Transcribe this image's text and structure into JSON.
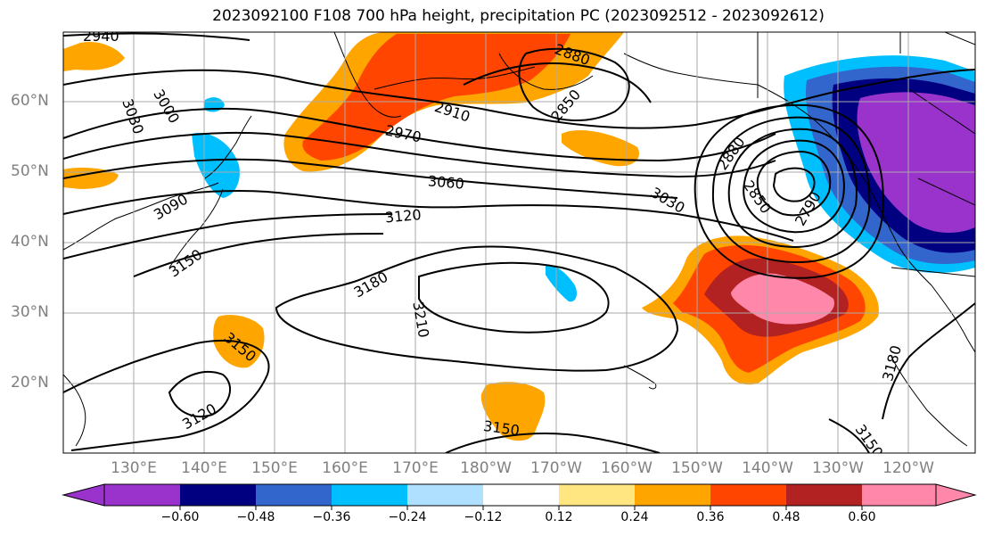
{
  "title": "2023092100 F108 700 hPa height, precipitation PC (2023092512 - 2023092612)",
  "lat_labels": [
    "60°N",
    "50°N",
    "40°N",
    "30°N",
    "20°N"
  ],
  "lon_labels": [
    "130°E",
    "140°E",
    "150°E",
    "160°E",
    "170°E",
    "180°W",
    "170°W",
    "160°W",
    "150°W",
    "140°W",
    "130°W",
    "120°W"
  ],
  "colorbar": {
    "ticks": [
      "−0.60",
      "−0.48",
      "−0.36",
      "−0.24",
      "−0.12",
      "0.12",
      "0.24",
      "0.36",
      "0.48",
      "0.60"
    ],
    "colors": [
      "#9933cc",
      "#000080",
      "#3366cc",
      "#00bfff",
      "#b0e0ff",
      "#ffffff",
      "#ffe680",
      "#ffa500",
      "#ff4500",
      "#b22222",
      "#ff88aa"
    ]
  },
  "contour_labels": [
    "2940",
    "3030",
    "3000",
    "2880",
    "2850",
    "2910",
    "2970",
    "3060",
    "3090",
    "3120",
    "3150",
    "3180",
    "3210",
    "3030",
    "2850",
    "2880",
    "2790",
    "3120",
    "3150",
    "3150",
    "3180",
    "3150"
  ]
}
